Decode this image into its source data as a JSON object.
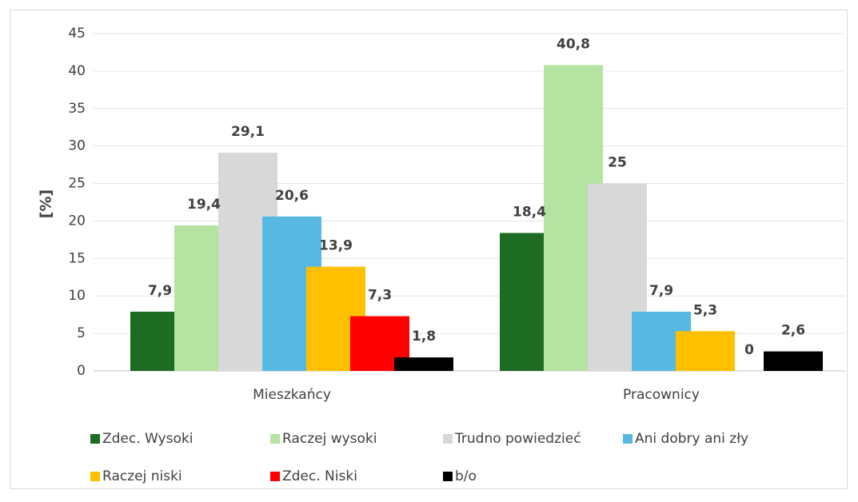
{
  "chart_data": {
    "type": "bar",
    "ylabel": "[%]",
    "categories": [
      "Mieszkańcy",
      "Pracownicy"
    ],
    "series": [
      {
        "name": "Zdec. Wysoki",
        "color": "#1e6b24",
        "values": [
          7.9,
          18.4
        ],
        "value_labels": [
          "7,9",
          "18,4"
        ]
      },
      {
        "name": "Raczej wysoki",
        "color": "#b5e3a1",
        "values": [
          19.4,
          40.8
        ],
        "value_labels": [
          "19,4",
          "40,8"
        ]
      },
      {
        "name": "Trudno powiedzieć",
        "color": "#d8d8d8",
        "values": [
          29.1,
          25
        ],
        "value_labels": [
          "29,1",
          "25"
        ]
      },
      {
        "name": "Ani dobry ani zły",
        "color": "#57b9e1",
        "values": [
          20.6,
          7.9
        ],
        "value_labels": [
          "20,6",
          "7,9"
        ]
      },
      {
        "name": "Raczej niski",
        "color": "#ffc000",
        "values": [
          13.9,
          5.3
        ],
        "value_labels": [
          "13,9",
          "5,3"
        ]
      },
      {
        "name": "Zdec. Niski",
        "color": "#ff0000",
        "values": [
          7.3,
          0
        ],
        "value_labels": [
          "7,3",
          "0"
        ]
      },
      {
        "name": "b/o",
        "color": "#000000",
        "values": [
          1.8,
          2.6
        ],
        "value_labels": [
          "1,8",
          "2,6"
        ]
      }
    ],
    "ylim": [
      0,
      45
    ],
    "yticks": [
      0,
      5,
      10,
      15,
      20,
      25,
      30,
      35,
      40,
      45
    ],
    "grid": true
  }
}
